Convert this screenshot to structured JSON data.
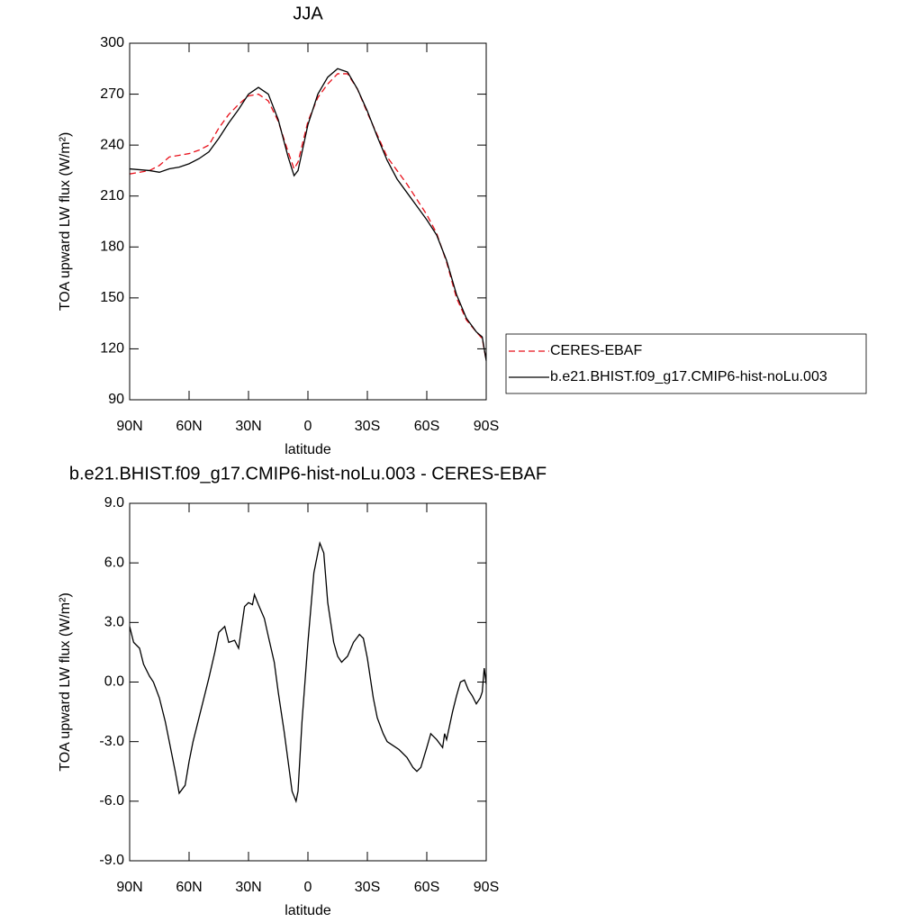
{
  "chart_data": [
    {
      "type": "line",
      "title": "JJA",
      "xlabel": "latitude",
      "ylabel": "TOA upward LW flux (W/m²)",
      "x": [
        90,
        80,
        75,
        70,
        65,
        60,
        55,
        50,
        45,
        40,
        35,
        30,
        25,
        20,
        15,
        10,
        7,
        5,
        0,
        -5,
        -10,
        -15,
        -20,
        -25,
        -30,
        -35,
        -40,
        -45,
        -50,
        -55,
        -60,
        -65,
        -70,
        -75,
        -80,
        -85,
        -88,
        -90
      ],
      "series": [
        {
          "name": "CERES-EBAF",
          "color": "#e8101a",
          "linestyle": "dashed",
          "values": [
            223,
            225,
            228,
            233,
            234,
            235,
            237,
            240,
            250,
            258,
            264,
            269,
            270,
            266,
            254,
            236,
            226,
            230,
            254,
            268,
            276,
            282,
            282,
            273,
            259,
            246,
            233,
            225,
            217,
            208,
            199,
            188,
            171,
            150,
            137,
            130,
            126,
            113
          ]
        },
        {
          "name": "b.e21.BHIST.f09_g17.CMIP6-hist-noLu.003",
          "color": "#000000",
          "linestyle": "solid",
          "values": [
            226,
            225,
            224,
            226,
            227,
            229,
            232,
            236,
            244,
            253,
            261,
            270,
            274,
            270,
            255,
            233,
            222,
            225,
            252,
            270,
            280,
            285,
            283,
            273,
            260,
            245,
            231,
            220,
            212,
            204,
            196,
            187,
            172,
            152,
            138,
            130,
            127,
            113
          ]
        }
      ],
      "xlim": [
        90,
        -90
      ],
      "xticks": [
        {
          "value": 90,
          "label": "90N"
        },
        {
          "value": 60,
          "label": "60N"
        },
        {
          "value": 30,
          "label": "30N"
        },
        0,
        {
          "value": -30,
          "label": "30S"
        },
        {
          "value": -60,
          "label": "60S"
        },
        {
          "value": -90,
          "label": "90S"
        }
      ],
      "ylim": [
        90,
        300
      ],
      "yticks": [
        90,
        120,
        150,
        180,
        210,
        240,
        270,
        300
      ],
      "legend": "right"
    },
    {
      "type": "line",
      "title": "b.e21.BHIST.f09_g17.CMIP6-hist-noLu.003 - CERES-EBAF",
      "xlabel": "latitude",
      "ylabel": "TOA upward LW flux (W/m²)",
      "x": [
        90,
        88,
        85,
        83,
        80,
        78,
        75,
        72,
        70,
        67,
        65,
        62,
        60,
        58,
        55,
        50,
        47,
        45,
        42,
        40,
        37,
        35,
        32,
        30,
        28,
        27,
        25,
        22,
        20,
        17,
        15,
        12,
        10,
        8,
        6,
        5,
        3,
        0,
        -3,
        -6,
        -8,
        -10,
        -13,
        -15,
        -17,
        -20,
        -23,
        -26,
        -28,
        -30,
        -33,
        -35,
        -38,
        -40,
        -43,
        -46,
        -50,
        -53,
        -55,
        -57,
        -60,
        -62,
        -65,
        -68,
        -69,
        -70,
        -73,
        -75,
        -77,
        -79,
        -81,
        -83,
        -85,
        -87,
        -88,
        -89,
        -90
      ],
      "series": [
        {
          "color": "#000000",
          "linestyle": "solid",
          "values": [
            2.8,
            2.0,
            1.7,
            0.9,
            0.3,
            0.0,
            -0.8,
            -2.0,
            -3.0,
            -4.5,
            -5.6,
            -5.2,
            -4.0,
            -3.0,
            -1.8,
            0.2,
            1.5,
            2.5,
            2.8,
            2.0,
            2.1,
            1.7,
            3.8,
            4.0,
            3.9,
            4.4,
            3.9,
            3.2,
            2.3,
            1.0,
            -0.5,
            -2.5,
            -4.0,
            -5.5,
            -6.0,
            -5.5,
            -2.0,
            2.0,
            5.5,
            7.0,
            6.5,
            4.0,
            2.0,
            1.3,
            1.0,
            1.3,
            2.0,
            2.4,
            2.2,
            1.2,
            -0.8,
            -1.8,
            -2.6,
            -3.0,
            -3.2,
            -3.4,
            -3.8,
            -4.3,
            -4.5,
            -4.3,
            -3.3,
            -2.6,
            -2.9,
            -3.3,
            -2.6,
            -2.9,
            -1.5,
            -0.7,
            0.0,
            0.1,
            -0.4,
            -0.7,
            -1.1,
            -0.8,
            -0.5,
            0.7,
            -0.1
          ]
        }
      ],
      "xlim": [
        90,
        -90
      ],
      "xticks": [
        {
          "value": 90,
          "label": "90N"
        },
        {
          "value": 60,
          "label": "60N"
        },
        {
          "value": 30,
          "label": "30N"
        },
        0,
        {
          "value": -30,
          "label": "30S"
        },
        {
          "value": -60,
          "label": "60S"
        },
        {
          "value": -90,
          "label": "90S"
        }
      ],
      "ylim": [
        -9,
        9
      ],
      "yticks": [
        {
          "value": -9,
          "label": "-9.0"
        },
        {
          "value": -6,
          "label": "-6.0"
        },
        {
          "value": -3,
          "label": "-3.0"
        },
        {
          "value": 0,
          "label": "0.0"
        },
        {
          "value": 3,
          "label": "3.0"
        },
        {
          "value": 6,
          "label": "6.0"
        },
        {
          "value": 9,
          "label": "9.0"
        }
      ]
    }
  ]
}
